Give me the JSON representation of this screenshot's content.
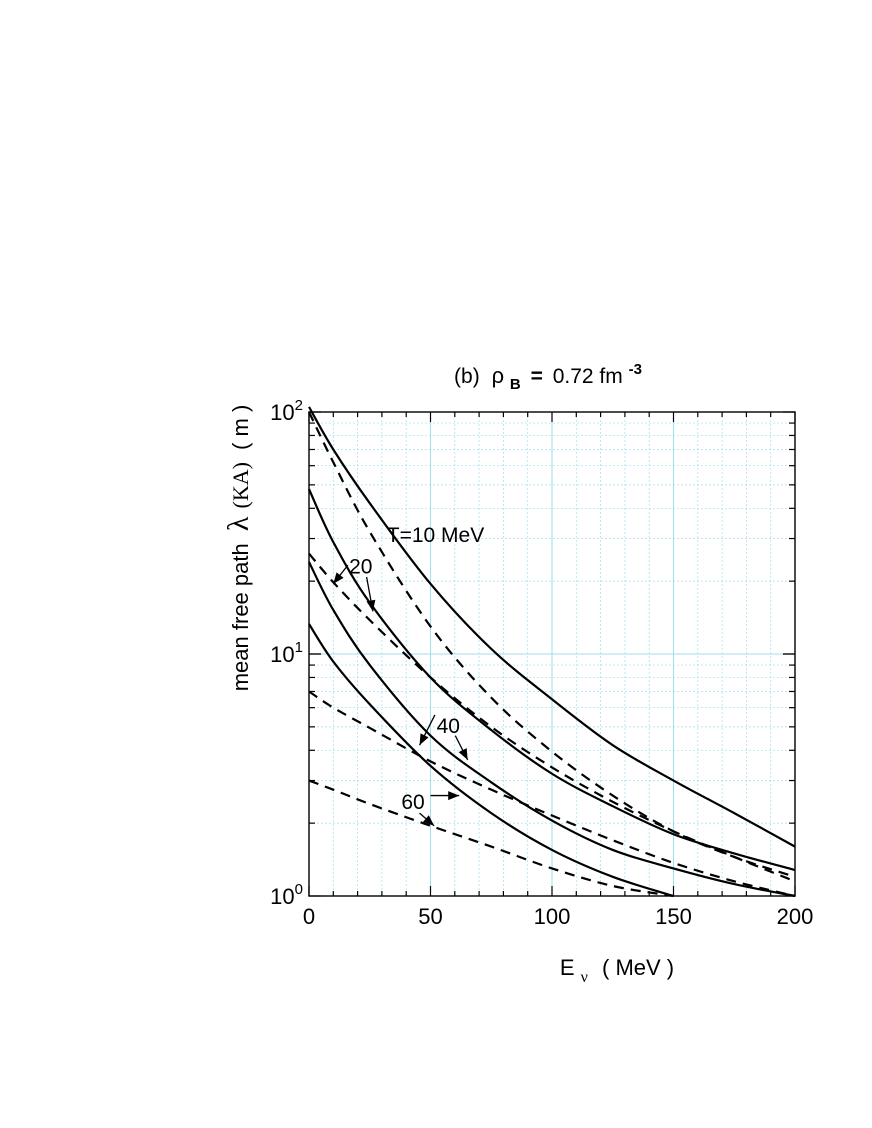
{
  "chart_data": {
    "type": "line",
    "title_parts": {
      "prefix": "(b)",
      "rho": "ρ",
      "rho_sub": "B",
      "equals": "=",
      "value": "0.72 fm",
      "exp": "-3"
    },
    "xlabel_parts": {
      "E": "E",
      "sub": "ν",
      "unit": "( MeV )"
    },
    "ylabel_parts": {
      "prefix": "mean free path",
      "lambda": "λ",
      "ka": "(KA)",
      "unit": "( m )"
    },
    "xlim": [
      0,
      200
    ],
    "ylim": [
      1,
      100
    ],
    "yscale": "log",
    "grid": true,
    "grid_color": "#9fdff0",
    "x_ticks": [
      0,
      50,
      100,
      150,
      200
    ],
    "x_tick_labels": [
      "0",
      "50",
      "100",
      "150",
      "200"
    ],
    "y_ticks": [
      1,
      10,
      100
    ],
    "y_tick_labels": [
      {
        "base": "10",
        "exp": "0"
      },
      {
        "base": "10",
        "exp": "1"
      },
      {
        "base": "10",
        "exp": "2"
      }
    ],
    "series": [
      {
        "style": "solid",
        "x": [
          0,
          10,
          25,
          50,
          75,
          100,
          125,
          150,
          175,
          200
        ],
        "y": [
          105,
          70,
          42,
          19.5,
          10.5,
          6.5,
          4.2,
          3.0,
          2.2,
          1.6
        ]
      },
      {
        "style": "dashed",
        "x": [
          0,
          10,
          25,
          50,
          75,
          100,
          125,
          150,
          175,
          200
        ],
        "y": [
          100,
          62,
          32,
          13,
          6.6,
          3.95,
          2.6,
          1.85,
          1.45,
          1.2
        ]
      },
      {
        "style": "solid",
        "x": [
          0,
          10,
          25,
          50,
          75,
          100,
          125,
          150,
          175,
          200
        ],
        "y": [
          48,
          29,
          16.3,
          8.0,
          4.85,
          3.2,
          2.35,
          1.8,
          1.5,
          1.28
        ]
      },
      {
        "style": "dashed",
        "x": [
          0,
          10,
          25,
          50,
          75,
          100,
          125,
          150,
          175,
          200
        ],
        "y": [
          26,
          19.8,
          13.8,
          8.0,
          5.0,
          3.4,
          2.45,
          1.85,
          1.45,
          1.15
        ]
      },
      {
        "style": "solid",
        "x": [
          0,
          10,
          25,
          50,
          75,
          100,
          125,
          150,
          175,
          200
        ],
        "y": [
          24,
          15.2,
          9.0,
          4.6,
          2.95,
          2.05,
          1.55,
          1.3,
          1.12,
          1.0
        ]
      },
      {
        "style": "dashed",
        "x": [
          0,
          10,
          25,
          50,
          75,
          100,
          125,
          150,
          175,
          200
        ],
        "y": [
          7.0,
          6.0,
          4.95,
          3.6,
          2.75,
          2.15,
          1.7,
          1.37,
          1.15,
          1.0
        ]
      },
      {
        "style": "solid",
        "x": [
          0,
          10,
          25,
          50,
          75,
          100,
          125,
          150
        ],
        "y": [
          13.3,
          9.3,
          6.2,
          3.45,
          2.2,
          1.55,
          1.2,
          1.0
        ]
      },
      {
        "style": "dashed",
        "x": [
          0,
          10,
          25,
          50,
          75,
          100,
          125,
          150
        ],
        "y": [
          3.0,
          2.75,
          2.4,
          1.95,
          1.6,
          1.3,
          1.1,
          1.0
        ]
      }
    ],
    "annotations": [
      {
        "label": "T=10 MeV",
        "x": 32,
        "y": 31
      },
      {
        "label": "20",
        "x": 16.5,
        "y": 23
      },
      {
        "label": "40",
        "x": 52.5,
        "y": 5.05
      },
      {
        "label": "60",
        "x": 38,
        "y": 2.45
      }
    ],
    "arrows": [
      {
        "from": [
          16,
          23.3
        ],
        "to": [
          10,
          19.5
        ]
      },
      {
        "from": [
          23.7,
          20.8
        ],
        "to": [
          26.3,
          15.0
        ]
      },
      {
        "from": [
          51.8,
          5.6
        ],
        "to": [
          45.5,
          4.2
        ]
      },
      {
        "from": [
          60.2,
          4.6
        ],
        "to": [
          65.3,
          3.65
        ]
      },
      {
        "from": [
          50,
          2.6
        ],
        "to": [
          61.8,
          2.6
        ]
      },
      {
        "from": [
          45.5,
          2.2
        ],
        "to": [
          51.5,
          1.95
        ]
      }
    ]
  }
}
